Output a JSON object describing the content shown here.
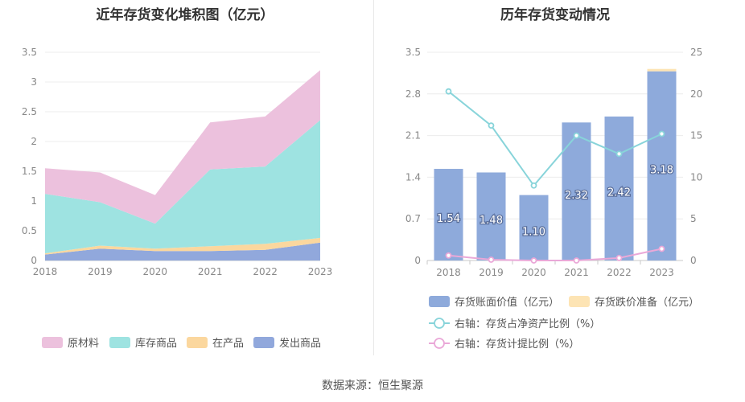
{
  "source_text": "数据来源：恒生聚源",
  "chart_data": [
    {
      "type": "area",
      "title": "近年存货变化堆积图（亿元）",
      "stacked": true,
      "categories": [
        "2018",
        "2019",
        "2020",
        "2021",
        "2022",
        "2023"
      ],
      "ylim": [
        0,
        3.5
      ],
      "yticks": [
        "0",
        "0.5",
        "1",
        "1.5",
        "2",
        "2.5",
        "3",
        "3.5"
      ],
      "grid": true,
      "legend_position": "bottom",
      "series": [
        {
          "name": "发出商品",
          "color": "#91a8dc",
          "values": [
            0.1,
            0.2,
            0.16,
            0.16,
            0.18,
            0.3
          ]
        },
        {
          "name": "在产品",
          "color": "#fbd79e",
          "values": [
            0.02,
            0.05,
            0.04,
            0.08,
            0.1,
            0.08
          ]
        },
        {
          "name": "库存商品",
          "color": "#9ee3e1",
          "values": [
            1.0,
            0.73,
            0.42,
            1.29,
            1.3,
            1.98
          ]
        },
        {
          "name": "原材料",
          "color": "#ecc1dd",
          "values": [
            0.43,
            0.5,
            0.48,
            0.79,
            0.84,
            0.84
          ]
        }
      ],
      "legend_order": [
        "原材料",
        "库存商品",
        "在产品",
        "发出商品"
      ]
    },
    {
      "type": "bar",
      "title": "历年存货变动情况",
      "categories": [
        "2018",
        "2019",
        "2020",
        "2021",
        "2022",
        "2023"
      ],
      "ylim": [
        0,
        3.5
      ],
      "yticks": [
        "0",
        "0.7",
        "1.4",
        "2.1",
        "2.8",
        "3.5"
      ],
      "y2lim": [
        0,
        25
      ],
      "y2ticks": [
        "0",
        "5",
        "10",
        "15",
        "20",
        "25"
      ],
      "grid": true,
      "legend_position": "bottom",
      "series": [
        {
          "name": "存货账面价值（亿元）",
          "kind": "bar",
          "axis": "left",
          "color": "#8eaadb",
          "values": [
            1.54,
            1.48,
            1.1,
            2.32,
            2.42,
            3.18
          ],
          "labels": [
            "1.54",
            "1.48",
            "1.10",
            "2.32",
            "2.42",
            "3.18"
          ]
        },
        {
          "name": "存货跌价准备（亿元）",
          "kind": "bar",
          "axis": "left",
          "color": "#fde4b4",
          "values": [
            0,
            0,
            0,
            0,
            0,
            0.04
          ]
        },
        {
          "name": "右轴：存货占净资产比例（%）",
          "kind": "line",
          "axis": "right",
          "color": "#88d4da",
          "values": [
            20.3,
            16.2,
            9.0,
            15.0,
            12.8,
            15.2
          ]
        },
        {
          "name": "右轴：存货计提比例（%）",
          "kind": "line",
          "axis": "right",
          "color": "#eaa8d8",
          "values": [
            0.6,
            0.1,
            0.0,
            0.0,
            0.3,
            1.4
          ]
        }
      ]
    }
  ]
}
